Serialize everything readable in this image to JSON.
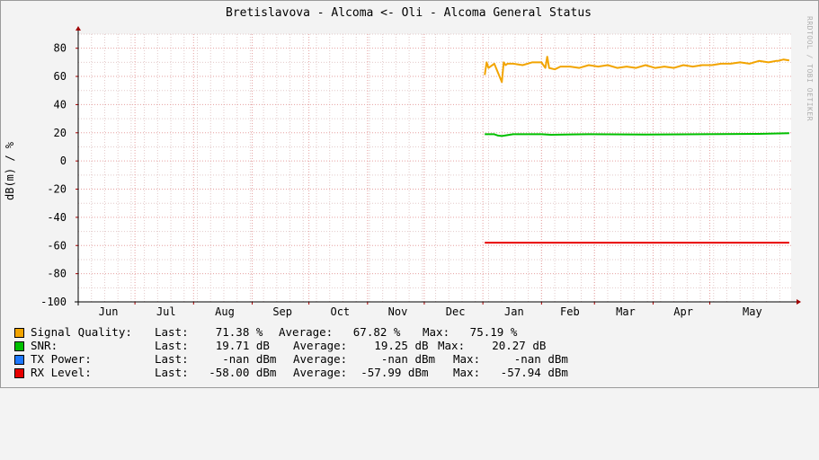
{
  "chart_data": {
    "type": "line",
    "title": "Bretislavova - Alcoma <- Oli - Alcoma General Status",
    "ylabel": "dB(m) / %",
    "watermark": "RRDTOOL / TOBI OETIKER",
    "ylim": [
      -100,
      90
    ],
    "yticks": [
      "80",
      "60",
      "40",
      "20",
      "0",
      "-20",
      "-40",
      "-60",
      "-80",
      "-100"
    ],
    "ytick_values": [
      80,
      60,
      40,
      20,
      0,
      -20,
      -40,
      -60,
      -80,
      -100
    ],
    "xticks": [
      "Jun",
      "Jul",
      "Aug",
      "Sep",
      "Oct",
      "Nov",
      "Dec",
      "Jan",
      "Feb",
      "Mar",
      "Apr",
      "May"
    ],
    "month_starts": [
      0,
      30,
      61,
      92,
      122,
      153,
      183,
      214,
      245,
      273,
      304,
      334
    ],
    "x_max": 377,
    "grid": true,
    "legend_position": "bottom",
    "series": [
      {
        "name": "Signal Quality:",
        "color": "#f2a400",
        "x": [
          215,
          216,
          217,
          220,
          224,
          225,
          226,
          227,
          230,
          235,
          240,
          245,
          247,
          248,
          249,
          252,
          255,
          260,
          265,
          270,
          275,
          280,
          285,
          290,
          295,
          300,
          305,
          310,
          315,
          320,
          325,
          330,
          335,
          340,
          345,
          350,
          355,
          360,
          365,
          369,
          370,
          373,
          376
        ],
        "values": [
          61,
          70,
          66,
          69,
          56,
          70,
          68,
          69,
          69,
          68,
          70,
          70,
          66,
          74,
          66,
          65,
          67,
          67,
          66,
          68,
          67,
          68,
          66,
          67,
          66,
          68,
          66,
          67,
          66,
          68,
          67,
          68,
          68,
          69,
          69,
          70,
          69,
          71,
          70,
          71,
          71,
          72,
          71.4
        ]
      },
      {
        "name": "SNR:",
        "color": "#00c000",
        "x": [
          215,
          220,
          222,
          224,
          230,
          245,
          250,
          270,
          300,
          330,
          360,
          376
        ],
        "values": [
          19,
          19,
          18,
          17.7,
          19,
          19,
          18.6,
          19,
          18.7,
          19,
          19.2,
          19.7
        ]
      },
      {
        "name": "TX Power:",
        "color": "#1e78ff",
        "x": [],
        "values": []
      },
      {
        "name": "RX Level:",
        "color": "#e80000",
        "x": [
          215,
          376
        ],
        "values": [
          -58,
          -58
        ]
      }
    ]
  },
  "legend": [
    {
      "name": "Signal Quality:",
      "color": "#f2a400",
      "last": "Last:    71.38 %",
      "avg": "Average:   67.82 %",
      "max": "Max:   75.19 %"
    },
    {
      "name": "SNR:",
      "color": "#00c000",
      "last": "Last:    19.71 dB",
      "avg": "Average:    19.25 dB",
      "max": "Max:    20.27 dB"
    },
    {
      "name": "TX Power:",
      "color": "#1e78ff",
      "last": "Last:     -nan dBm",
      "avg": "Average:     -nan dBm",
      "max": "Max:     -nan dBm"
    },
    {
      "name": "RX Level:",
      "color": "#e80000",
      "last": "Last:   -58.00 dBm",
      "avg": "Average:  -57.99 dBm",
      "max": "Max:   -57.94 dBm"
    }
  ]
}
